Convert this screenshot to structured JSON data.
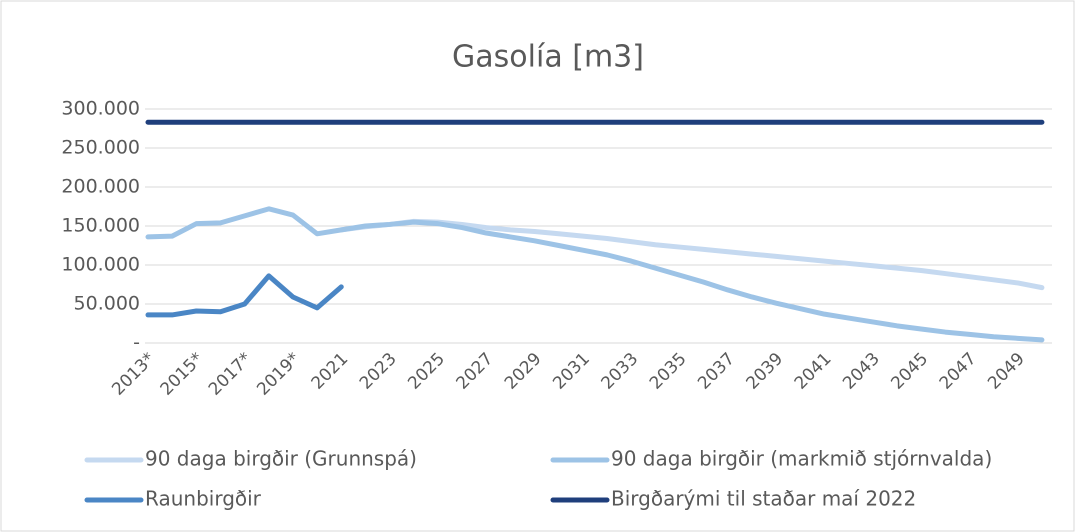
{
  "chart_data": {
    "type": "line",
    "title": "Gasolía [m3]",
    "categories": [
      "2013*",
      null,
      "2015*",
      null,
      "2017*",
      null,
      "2019*",
      null,
      "2021",
      null,
      "2023",
      null,
      "2025",
      null,
      "2027",
      null,
      "2029",
      null,
      "2031",
      null,
      "2033",
      null,
      "2035",
      null,
      "2037",
      null,
      "2039",
      null,
      "2041",
      null,
      "2043",
      null,
      "2045",
      null,
      "2047",
      null,
      "2049",
      null
    ],
    "series": [
      {
        "name": "90 daga birgðir (Grunnspá)",
        "color": "#c5d9f0",
        "values": [
          null,
          null,
          null,
          null,
          null,
          null,
          null,
          null,
          145000,
          149000,
          152000,
          156000,
          155000,
          152000,
          148000,
          145000,
          143000,
          140000,
          137000,
          134000,
          130000,
          126000,
          123000,
          120000,
          117000,
          114000,
          111000,
          108000,
          105000,
          102000,
          99000,
          96000,
          93000,
          89000,
          85000,
          81000,
          77000,
          71000
        ]
      },
      {
        "name": "90 daga birgðir (markmið stjórnvalda)",
        "color": "#9dc3e6",
        "values": [
          136000,
          137000,
          153000,
          154000,
          163000,
          172000,
          164000,
          140000,
          145000,
          150000,
          152000,
          155000,
          153000,
          148000,
          141000,
          136000,
          131000,
          125000,
          119000,
          113000,
          105000,
          96000,
          87000,
          78000,
          68000,
          59000,
          51000,
          44000,
          37000,
          32000,
          27000,
          22000,
          18000,
          14000,
          11000,
          8000,
          6000,
          4000
        ]
      },
      {
        "name": "Raunbirgðir",
        "color": "#4a86c5",
        "values": [
          36000,
          36000,
          41000,
          40000,
          50000,
          86000,
          59000,
          45000,
          72000,
          null,
          null,
          null,
          null,
          null,
          null,
          null,
          null,
          null,
          null,
          null,
          null,
          null,
          null,
          null,
          null,
          null,
          null,
          null,
          null,
          null,
          null,
          null,
          null,
          null,
          null,
          null,
          null,
          null
        ]
      },
      {
        "name": "Birgðarými til staðar maí 2022",
        "color": "#1f3f7c",
        "values": [
          283000,
          283000,
          283000,
          283000,
          283000,
          283000,
          283000,
          283000,
          283000,
          283000,
          283000,
          283000,
          283000,
          283000,
          283000,
          283000,
          283000,
          283000,
          283000,
          283000,
          283000,
          283000,
          283000,
          283000,
          283000,
          283000,
          283000,
          283000,
          283000,
          283000,
          283000,
          283000,
          283000,
          283000,
          283000,
          283000,
          283000,
          283000
        ]
      }
    ],
    "ylim": [
      0,
      300000
    ],
    "yticks": [
      {
        "value": 0,
        "label": "-"
      },
      {
        "value": 50000,
        "label": "50.000"
      },
      {
        "value": 100000,
        "label": "100.000"
      },
      {
        "value": 150000,
        "label": "150.000"
      },
      {
        "value": 200000,
        "label": "200.000"
      },
      {
        "value": 250000,
        "label": "250.000"
      },
      {
        "value": 300000,
        "label": "300.000"
      }
    ],
    "grid": true,
    "legend": "bottom"
  }
}
